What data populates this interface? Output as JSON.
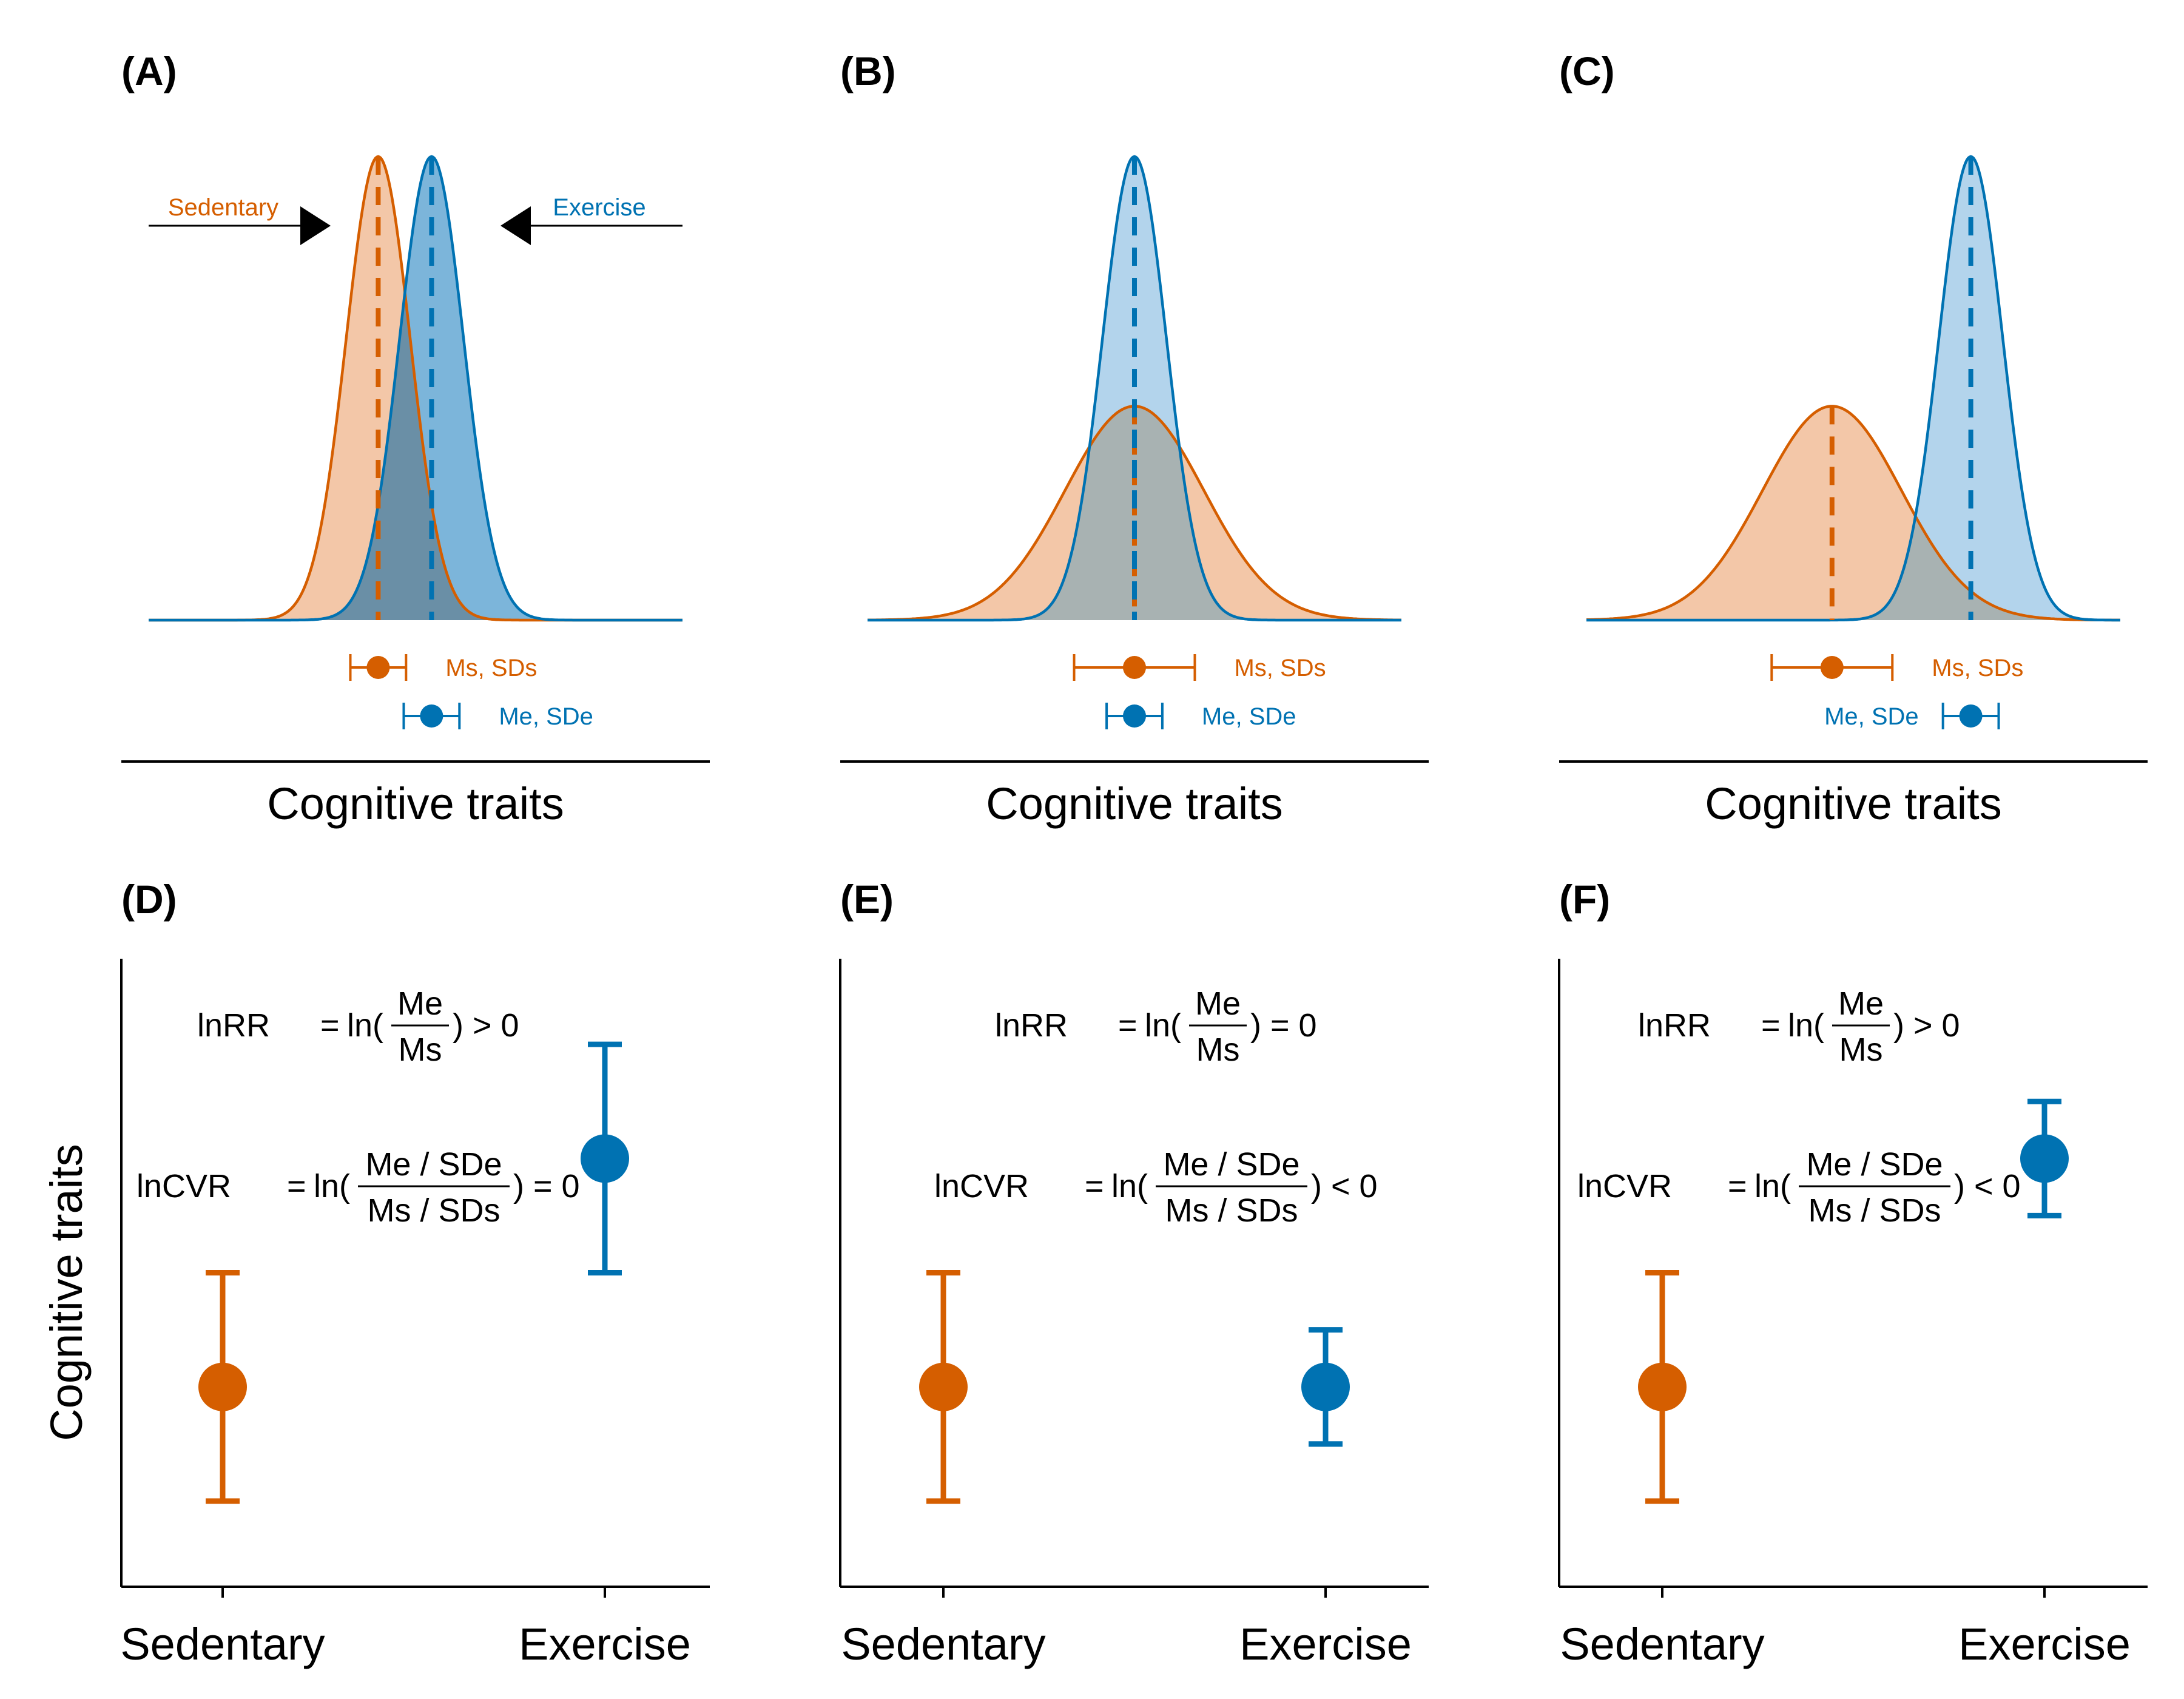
{
  "colors": {
    "sedentary": "#D55E00",
    "exercise": "#0072B2",
    "sedentary_fill": "#F3C7A8",
    "exercise_fill_dark": "#7CB5DA",
    "exercise_fill_light": "#B3D4EC",
    "overlap_dark": "#6A8FA6",
    "overlap_light": "#A8B2B2",
    "axis": "#000000"
  },
  "chart_data": [
    {
      "panel": "(A)",
      "type": "area",
      "xlabel": "Cognitive traits",
      "series": [
        {
          "name": "Sedentary",
          "mean": 4.3,
          "sd": 0.6,
          "point_label": "Ms, SDs"
        },
        {
          "name": "Exercise",
          "mean": 5.3,
          "sd": 0.6,
          "point_label": "Me, SDe"
        }
      ],
      "curve_labels": [
        "Sedentary",
        "Exercise"
      ],
      "xlim": [
        0,
        10
      ]
    },
    {
      "panel": "(B)",
      "type": "area",
      "xlabel": "Cognitive traits",
      "series": [
        {
          "name": "Sedentary",
          "mean": 5.0,
          "sd": 1.3,
          "point_label": "Ms, SDs"
        },
        {
          "name": "Exercise",
          "mean": 5.0,
          "sd": 0.6,
          "point_label": "Me, SDe"
        }
      ],
      "xlim": [
        0,
        10
      ]
    },
    {
      "panel": "(C)",
      "type": "area",
      "xlabel": "Cognitive traits",
      "series": [
        {
          "name": "Sedentary",
          "mean": 4.6,
          "sd": 1.3,
          "point_label": "Ms, SDs"
        },
        {
          "name": "Exercise",
          "mean": 7.2,
          "sd": 0.6,
          "point_label": "Me, SDe"
        }
      ],
      "xlim": [
        0,
        10
      ]
    },
    {
      "panel": "(D)",
      "type": "scatter",
      "ylabel": "Cognitive traits",
      "categories": [
        "Sedentary",
        "Exercise"
      ],
      "values": [
        2,
        6
      ],
      "errors": [
        2,
        2
      ],
      "ylim": [
        -1.5,
        9.5
      ],
      "lnRR": {
        "lhs": "lnRR",
        "ln": "ln(",
        "num": "Me",
        "den": "Ms",
        "rel": ") > 0"
      },
      "lnCVR": {
        "lhs": "lnCVR",
        "ln": "ln(",
        "num": "Me / SDe",
        "den": "Ms / SDs",
        "rel": ") = 0"
      }
    },
    {
      "panel": "(E)",
      "type": "scatter",
      "categories": [
        "Sedentary",
        "Exercise"
      ],
      "values": [
        2,
        2
      ],
      "errors": [
        2,
        1
      ],
      "ylim": [
        -1.5,
        9.5
      ],
      "lnRR": {
        "lhs": "lnRR",
        "ln": "ln(",
        "num": "Me",
        "den": "Ms",
        "rel": ") = 0"
      },
      "lnCVR": {
        "lhs": "lnCVR",
        "ln": "ln(",
        "num": "Me / SDe",
        "den": "Ms / SDs",
        "rel": ") < 0"
      }
    },
    {
      "panel": "(F)",
      "type": "scatter",
      "categories": [
        "Sedentary",
        "Exercise"
      ],
      "values": [
        2,
        6
      ],
      "errors": [
        2,
        1
      ],
      "ylim": [
        -1.5,
        9.5
      ],
      "lnRR": {
        "lhs": "lnRR",
        "ln": "ln(",
        "num": "Me",
        "den": "Ms",
        "rel": ") > 0"
      },
      "lnCVR": {
        "lhs": "lnCVR",
        "ln": "ln(",
        "num": "Me / SDe",
        "den": "Ms / SDs",
        "rel": ") < 0"
      }
    }
  ]
}
